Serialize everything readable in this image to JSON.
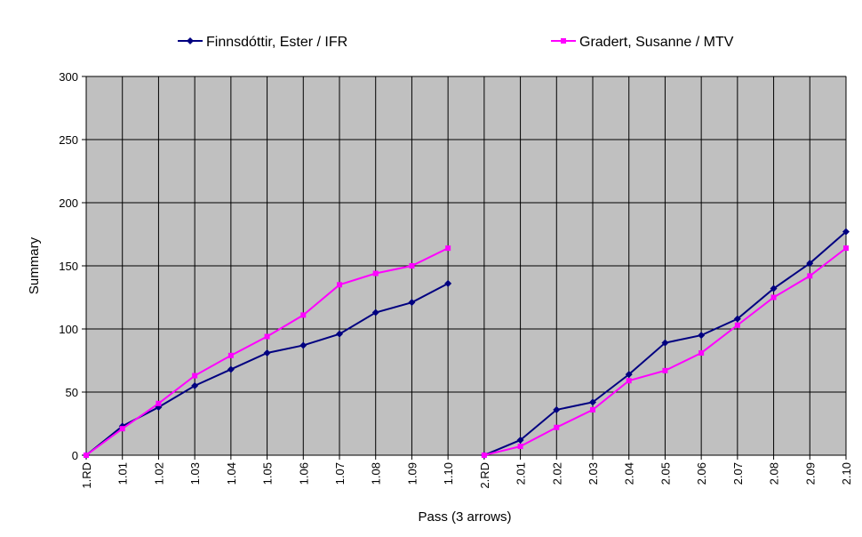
{
  "chart_data": {
    "type": "line",
    "x_label": "Pass (3 arrows)",
    "y_label": "Summary",
    "categories": [
      [
        "1.RD",
        "1.01",
        "1.02",
        "1.03",
        "1.04",
        "1.05",
        "1.06",
        "1.07",
        "1.08",
        "1.09",
        "1.10"
      ],
      [
        "2.RD",
        "2.01",
        "2.02",
        "2.03",
        "2.04",
        "2.05",
        "2.06",
        "2.07",
        "2.08",
        "2.09",
        "2.10"
      ]
    ],
    "series": [
      {
        "name": "Finnsdóttir, Ester / IFR",
        "color": "#000080",
        "marker": "diamond",
        "values": [
          [
            0,
            23,
            38,
            55,
            68,
            81,
            87,
            96,
            113,
            121,
            136
          ],
          [
            0,
            12,
            36,
            42,
            64,
            89,
            95,
            108,
            132,
            152,
            177
          ]
        ]
      },
      {
        "name": "Gradert, Susanne / MTV",
        "color": "#ff00ff",
        "marker": "square",
        "values": [
          [
            0,
            21,
            41,
            63,
            79,
            94,
            111,
            135,
            144,
            150,
            164
          ],
          [
            0,
            7,
            22,
            36,
            59,
            67,
            81,
            103,
            125,
            142,
            164
          ]
        ]
      }
    ],
    "ylim": [
      0,
      300
    ],
    "yticks": [
      0,
      50,
      100,
      150,
      200,
      250,
      300
    ],
    "grid": true,
    "legend": "top"
  }
}
